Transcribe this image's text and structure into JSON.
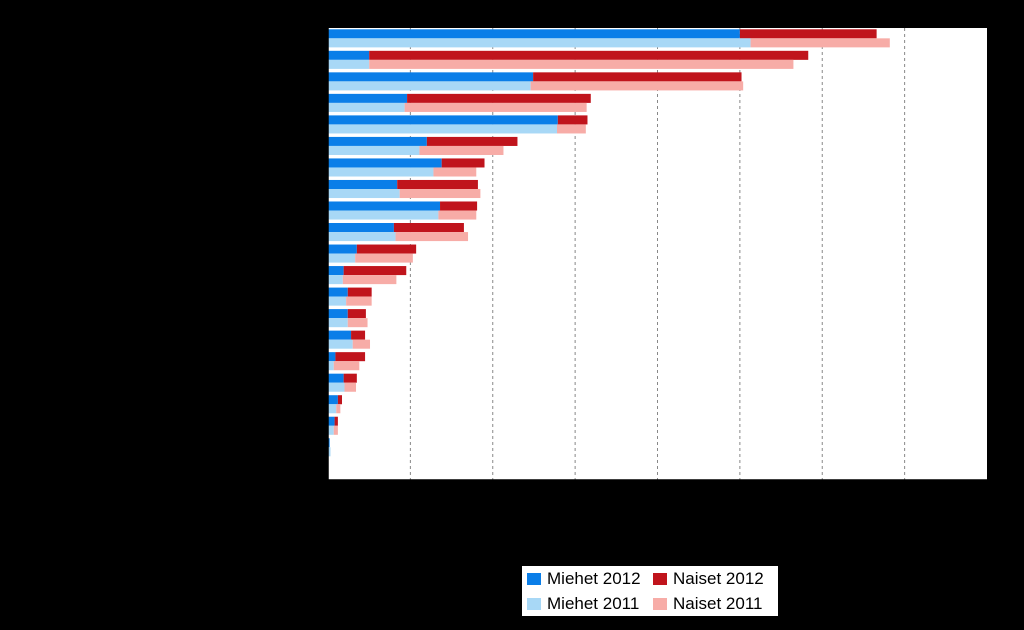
{
  "chart_data": {
    "type": "bar",
    "orientation": "horizontal",
    "layout": "grouped-stacked",
    "title": "",
    "xlabel": "",
    "ylabel": "",
    "xlim": [
      0,
      8000
    ],
    "grid": true,
    "legend_position": "bottom-right",
    "categories": [
      "",
      "",
      "",
      "",
      "",
      "",
      "",
      "",
      "",
      "",
      "",
      "",
      "",
      "",
      "",
      "",
      "",
      "",
      "",
      "",
      ""
    ],
    "stacks": [
      {
        "year": "2012",
        "series": [
          {
            "name": "Miehet 2012",
            "color": "#0a7ee8",
            "values": [
              5000,
              500,
              2490,
              960,
              2790,
              1200,
              1380,
              840,
              1360,
              800,
              350,
              190,
              240,
              240,
              280,
              90,
              190,
              120,
              80,
              20,
              0
            ]
          },
          {
            "name": "Naiset 2012",
            "color": "#c0141c",
            "values": [
              1660,
              5330,
              2530,
              2230,
              360,
              1100,
              520,
              980,
              450,
              850,
              720,
              760,
              290,
              220,
              170,
              360,
              160,
              50,
              40,
              0,
              0
            ]
          }
        ]
      },
      {
        "year": "2011",
        "series": [
          {
            "name": "Miehet 2011",
            "color": "#a8d8f6",
            "values": [
              5130,
              500,
              2460,
              930,
              2780,
              1110,
              1280,
              870,
              1340,
              820,
              330,
              180,
              220,
              240,
              300,
              70,
              200,
              100,
              70,
              30,
              0
            ]
          },
          {
            "name": "Naiset 2011",
            "color": "#f7aca7",
            "values": [
              1690,
              5150,
              2580,
              2210,
              350,
              1020,
              520,
              980,
              460,
              880,
              700,
              650,
              310,
              240,
              210,
              310,
              140,
              50,
              50,
              0,
              0
            ]
          }
        ]
      }
    ],
    "legend": [
      {
        "label": "Miehet 2012",
        "color": "#0a7ee8"
      },
      {
        "label": "Naiset 2012",
        "color": "#c0141c"
      },
      {
        "label": "Miehet 2011",
        "color": "#a8d8f6"
      },
      {
        "label": "Naiset 2011",
        "color": "#f7aca7"
      }
    ]
  }
}
